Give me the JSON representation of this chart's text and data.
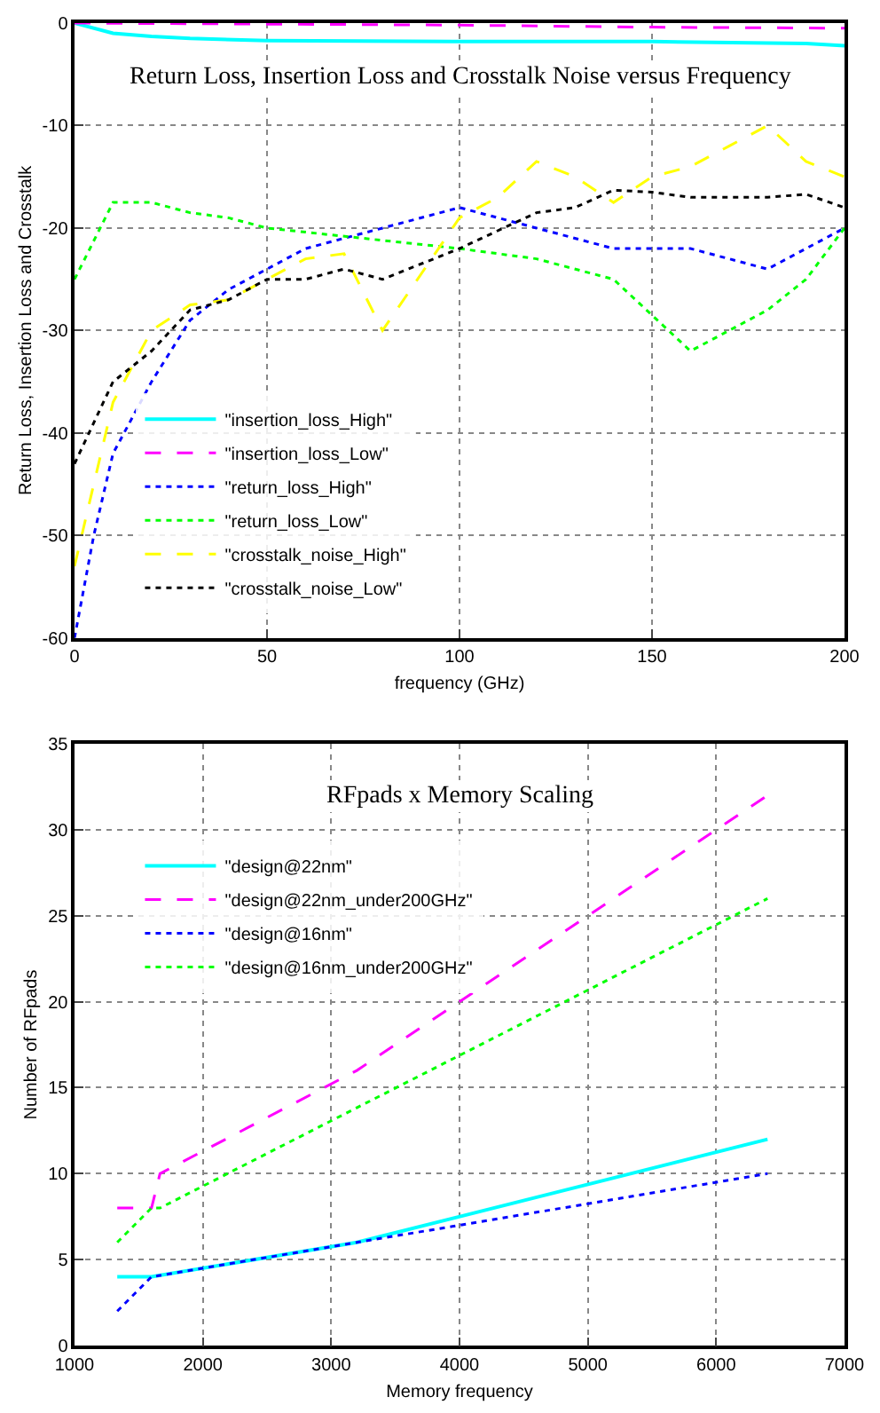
{
  "chart_data": [
    {
      "type": "line",
      "title": "Return Loss, Insertion Loss and Crosstalk Noise versus Frequency",
      "xlabel": "frequency (GHz)",
      "ylabel": "Return Loss, Insertion Loss and Crosstalk",
      "xlim": [
        0,
        200
      ],
      "xticks": [
        0,
        50,
        100,
        150,
        200
      ],
      "ylim": [
        -60,
        0
      ],
      "yticks": [
        -60,
        -50,
        -40,
        -30,
        -20,
        -10,
        0
      ],
      "grid": true,
      "legend": "bottom left",
      "marker": "none",
      "series": [
        {
          "name": "\"insertion_loss_High\"",
          "color": "#00ffff",
          "line_style": "solid",
          "x": [
            0,
            10,
            20,
            30,
            50,
            100,
            150,
            190,
            200
          ],
          "values": [
            0,
            -1,
            -1.3,
            -1.5,
            -1.7,
            -1.8,
            -1.8,
            -2,
            -2.2
          ]
        },
        {
          "name": "\"insertion_loss_Low\"",
          "color": "#ff00ff",
          "line_style": "dashed",
          "x": [
            0,
            100,
            150,
            200
          ],
          "values": [
            0,
            -0.2,
            -0.4,
            -0.5
          ]
        },
        {
          "name": "\"return_loss_High\"",
          "color": "#0000ff",
          "line_style": "dotted",
          "x": [
            0,
            5,
            10,
            20,
            30,
            40,
            50,
            60,
            80,
            100,
            120,
            140,
            160,
            180,
            200
          ],
          "values": [
            -60,
            -50,
            -42,
            -35,
            -29,
            -26,
            -24,
            -22,
            -20,
            -18,
            -20,
            -22,
            -22,
            -24,
            -20
          ]
        },
        {
          "name": "\"return_loss_Low\"",
          "color": "#00ff00",
          "line_style": "dotted",
          "x": [
            0,
            10,
            20,
            30,
            40,
            50,
            100,
            120,
            140,
            160,
            180,
            190,
            200
          ],
          "values": [
            -25,
            -17.5,
            -17.5,
            -18.5,
            -19,
            -20,
            -22,
            -23,
            -25,
            -32,
            -28,
            -25,
            -20
          ]
        },
        {
          "name": "\"crosstalk_noise_High\"",
          "color": "#ffff00",
          "line_style": "dashed",
          "x": [
            0,
            5,
            10,
            20,
            30,
            40,
            50,
            60,
            70,
            80,
            100,
            110,
            120,
            130,
            140,
            150,
            160,
            170,
            180,
            190,
            200
          ],
          "values": [
            -53,
            -45,
            -37,
            -30,
            -27.5,
            -27,
            -25,
            -23,
            -22.5,
            -30,
            -19,
            -17,
            -13.5,
            -15,
            -17.5,
            -15,
            -14,
            -12,
            -10,
            -13.5,
            -15
          ]
        },
        {
          "name": "\"crosstalk_noise_Low\"",
          "color": "#000000",
          "line_style": "dotted",
          "x": [
            0,
            10,
            20,
            30,
            40,
            50,
            60,
            70,
            80,
            100,
            120,
            130,
            140,
            150,
            160,
            180,
            190,
            200
          ],
          "values": [
            -43,
            -35,
            -32,
            -28,
            -27,
            -25,
            -25,
            -24,
            -25,
            -22,
            -18.5,
            -18,
            -16.3,
            -16.5,
            -17,
            -17,
            -16.7,
            -18
          ]
        }
      ]
    },
    {
      "type": "line",
      "title": "RFpads x Memory Scaling",
      "xlabel": "Memory frequency",
      "ylabel": "Number of RFpads",
      "xlim": [
        1000,
        7000
      ],
      "xticks": [
        1000,
        2000,
        3000,
        4000,
        5000,
        6000,
        7000
      ],
      "ylim": [
        0,
        35
      ],
      "yticks": [
        0,
        5,
        10,
        15,
        20,
        25,
        30,
        35
      ],
      "grid": true,
      "legend": "top left",
      "marker": "none",
      "series": [
        {
          "name": "\"design@22nm\"",
          "color": "#00ffff",
          "line_style": "solid",
          "x": [
            1333,
            1600,
            3200,
            6400
          ],
          "values": [
            4,
            4,
            6,
            12
          ]
        },
        {
          "name": "\"design@22nm_under200GHz\"",
          "color": "#ff00ff",
          "line_style": "dashed",
          "x": [
            1333,
            1600,
            1666,
            3200,
            6400
          ],
          "values": [
            8,
            8,
            10,
            16,
            32
          ]
        },
        {
          "name": "\"design@16nm\"",
          "color": "#0000ff",
          "line_style": "dotted",
          "x": [
            1333,
            1600,
            3200,
            6400
          ],
          "values": [
            2,
            4,
            6,
            10
          ]
        },
        {
          "name": "\"design@16nm_under200GHz\"",
          "color": "#00ff00",
          "line_style": "dotted",
          "x": [
            1333,
            1600,
            1666,
            6400
          ],
          "values": [
            6,
            8,
            8,
            26
          ]
        }
      ]
    }
  ]
}
